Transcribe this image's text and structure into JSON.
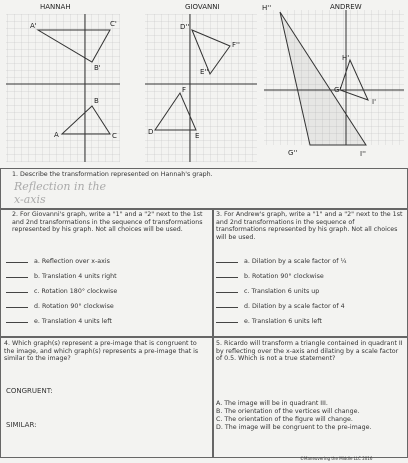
{
  "graphs": [
    {
      "name": "HANNAH",
      "labels": [
        "A'",
        "C'",
        "B'",
        "B",
        "A",
        "C"
      ]
    },
    {
      "name": "GIOVANNI",
      "labels": [
        "D''",
        "F''",
        "E''",
        "F",
        "D",
        "E"
      ]
    },
    {
      "name": "ANDREW",
      "labels": [
        "H''",
        "H'",
        "G'",
        "I'",
        "G''",
        "I''"
      ]
    }
  ],
  "q1": {
    "text": "1. Describe the transformation represented on Hannah's graph.",
    "answer": [
      "Reflection in the",
      "x-axis"
    ]
  },
  "q2": {
    "text": "2. For Giovanni's graph, write a \"1\" and a \"2\" next to the 1st and 2nd transformations in the sequence of transformations represented by his graph. Not all choices will be used.",
    "options": [
      "a. Reflection over x-axis",
      "b. Translation 4 units right",
      "c. Rotation 180° clockwise",
      "d. Rotation 90° clockwise",
      "e. Translation 4 units left"
    ]
  },
  "q3": {
    "text": "3. For Andrew's graph, write a \"1\" and a \"2\" next to the 1st and 2nd transformations in the sequence of transformations represented by his graph. Not all choices will be used.",
    "options": [
      "a. Dilation by a scale factor of ¼",
      "b. Rotation 90° clockwise",
      "c. Translation 6 units up",
      "d. Dilation by a scale factor of 4",
      "e. Translation 6 units left"
    ]
  },
  "q4": {
    "text": "4. Which graph(s) represent a pre-image that is congruent to the image, and which graph(s) represents a pre-image that is similar to the image?",
    "congruent": "CONGRUENT:",
    "similar": "SIMILAR:"
  },
  "q5": {
    "text": "5. Ricardo will transform a triangle contained in quadrant II by reflecting over the x-axis and dilating by a scale factor of 0.5. Which is not a true statement?",
    "options": [
      "A. The image will be in quadrant III.",
      "B. The orientation of the vertices will change.",
      "C. The orientation of the figure will change.",
      "D. The image will be congruent to the pre-image."
    ]
  },
  "footer": "©Maneuvering the Middle LLC 2016"
}
